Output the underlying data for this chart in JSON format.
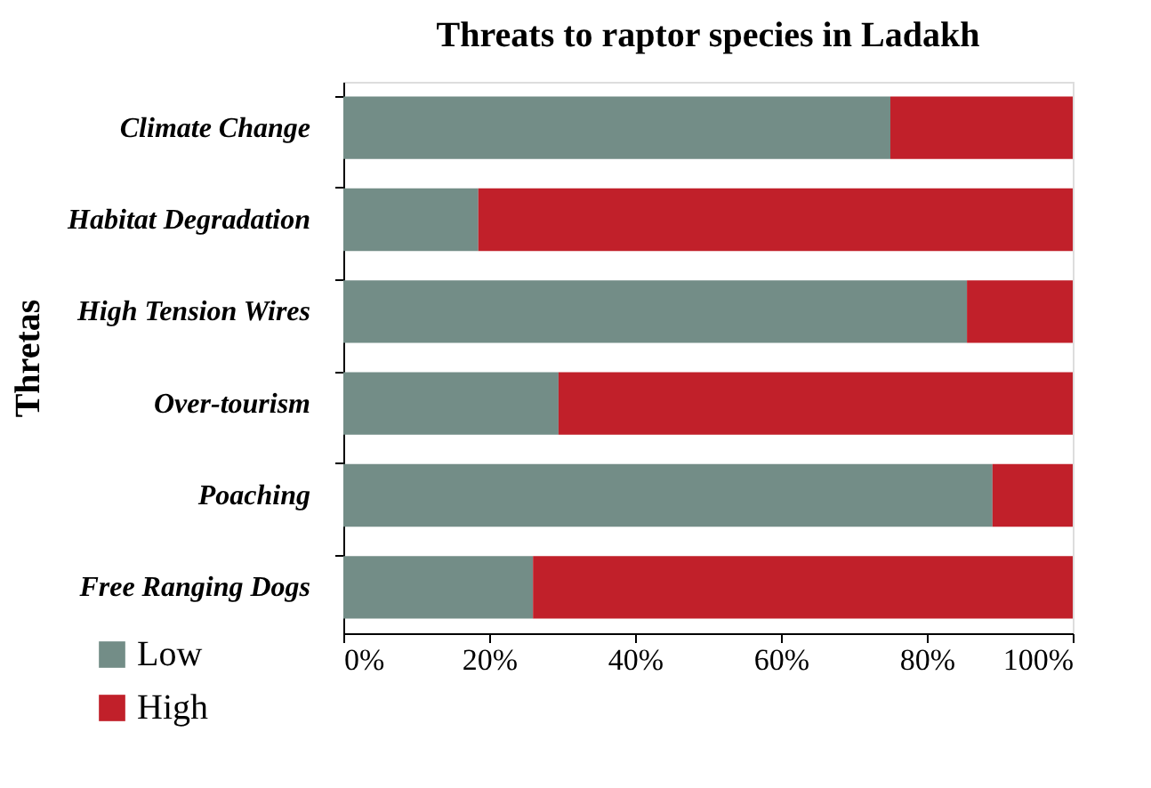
{
  "chart_data": {
    "type": "bar",
    "orientation": "horizontal",
    "stacked": true,
    "title": "Threats to raptor species in Ladakh",
    "ylabel": "Thretas",
    "categories": [
      "Climate Change",
      "Habitat Degradation",
      "High Tension Wires",
      "Over-tourism",
      "Poaching",
      "Free Ranging Dogs"
    ],
    "series": [
      {
        "name": "Low",
        "color": "#738d87",
        "values": [
          75,
          18.5,
          85.5,
          29.5,
          89,
          26
        ]
      },
      {
        "name": "High",
        "color": "#c1202a",
        "values": [
          25,
          81.5,
          14.5,
          70.5,
          11,
          74
        ]
      }
    ],
    "xlim": [
      0,
      100
    ],
    "xticks": [
      {
        "value": 0,
        "label": "0%"
      },
      {
        "value": 20,
        "label": "20%"
      },
      {
        "value": 40,
        "label": "40%"
      },
      {
        "value": 60,
        "label": "60%"
      },
      {
        "value": 80,
        "label": "80%"
      },
      {
        "value": 100,
        "label": "100%"
      }
    ],
    "grid": false,
    "legend": "bottom left"
  }
}
